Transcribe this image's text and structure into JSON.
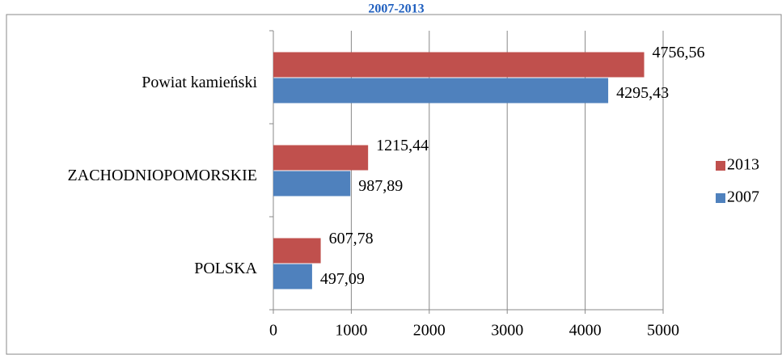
{
  "chart_data": {
    "type": "hbar",
    "title": "2007-2013",
    "categories": [
      "Powiat kamieński",
      "ZACHODNIOPOMORSKIE",
      "POLSKA"
    ],
    "series": [
      {
        "name": "2013",
        "color": "#c0504d",
        "values": [
          4756.56,
          1215.44,
          607.78
        ],
        "value_labels": [
          "4756,56",
          "1215,44",
          "607,78"
        ]
      },
      {
        "name": "2007",
        "color": "#4f81bd",
        "values": [
          4295.43,
          987.89,
          497.09
        ],
        "value_labels": [
          "4295,43",
          "987,89",
          "497,09"
        ]
      }
    ],
    "xlim": [
      0,
      5000
    ],
    "xticks": [
      0,
      1000,
      2000,
      3000,
      4000,
      5000
    ],
    "grid": true,
    "legend": "right"
  }
}
